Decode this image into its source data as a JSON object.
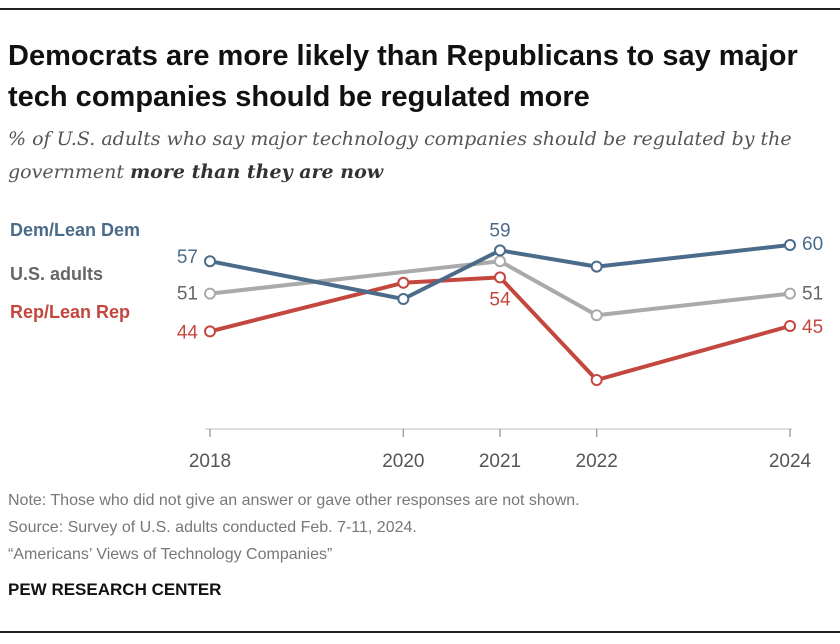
{
  "title": "Democrats are more likely than Republicans to say major tech companies should be regulated more",
  "subtitle_prefix": "% of U.S. adults who say major technology companies should be regulated by the government ",
  "subtitle_emphasis": "more than they are now",
  "note": "Note: Those who did not give an answer or gave other responses are not shown.",
  "source": "Source: Survey of U.S. adults conducted Feb. 7-11, 2024.",
  "report": "“Americans’ Views of Technology Companies”",
  "footer": "PEW RESEARCH CENTER",
  "chart_data": {
    "type": "line",
    "x": [
      2018,
      2020,
      2021,
      2022,
      2024
    ],
    "ylim": [
      0,
      100
    ],
    "grid": false,
    "legend": "left inline labels",
    "series": [
      {
        "name": "Dem/Lean Dem",
        "color": "#4a6c8a",
        "values": [
          57,
          50,
          59,
          56,
          60
        ],
        "labels": [
          "57",
          "",
          "59",
          "",
          "60"
        ]
      },
      {
        "name": "U.S. adults",
        "color": "#aaaaaa",
        "values": [
          51,
          null,
          57,
          47,
          51
        ],
        "labels": [
          "51",
          "",
          "",
          "",
          "51"
        ]
      },
      {
        "name": "Rep/Lean Rep",
        "color": "#c4473f",
        "values": [
          44,
          53,
          54,
          35,
          45
        ],
        "labels": [
          "44",
          "",
          "54",
          "",
          "45"
        ]
      }
    ]
  }
}
